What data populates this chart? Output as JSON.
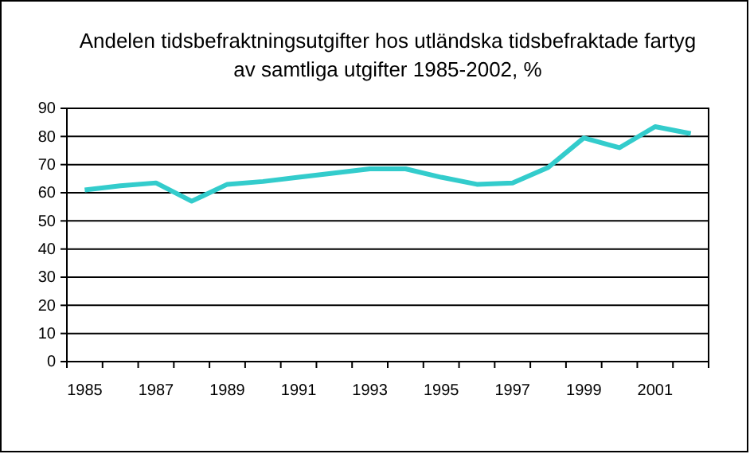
{
  "chart_data": {
    "type": "line",
    "title": "Andelen tidsbefraktningsutgifter hos utländska tidsbefraktade fartyg av samtliga utgifter 1985-2002, %",
    "categories": [
      "1985",
      null,
      "1987",
      null,
      "1989",
      null,
      "1991",
      null,
      "1993",
      null,
      "1995",
      null,
      "1997",
      null,
      "1999",
      null,
      "2001",
      null
    ],
    "series": [
      {
        "color": "#33cccc",
        "values": [
          61,
          62.5,
          63.5,
          57,
          63,
          64,
          65.5,
          67,
          68.5,
          68.5,
          65.5,
          63,
          63.5,
          69,
          79.5,
          76,
          83.5,
          81
        ]
      }
    ],
    "ylim": [
      0,
      90
    ],
    "yticks": [
      0,
      10,
      20,
      30,
      40,
      50,
      60,
      70,
      80,
      90
    ],
    "grid": "y",
    "legend": false,
    "marker": "none",
    "line_style": "solid"
  }
}
